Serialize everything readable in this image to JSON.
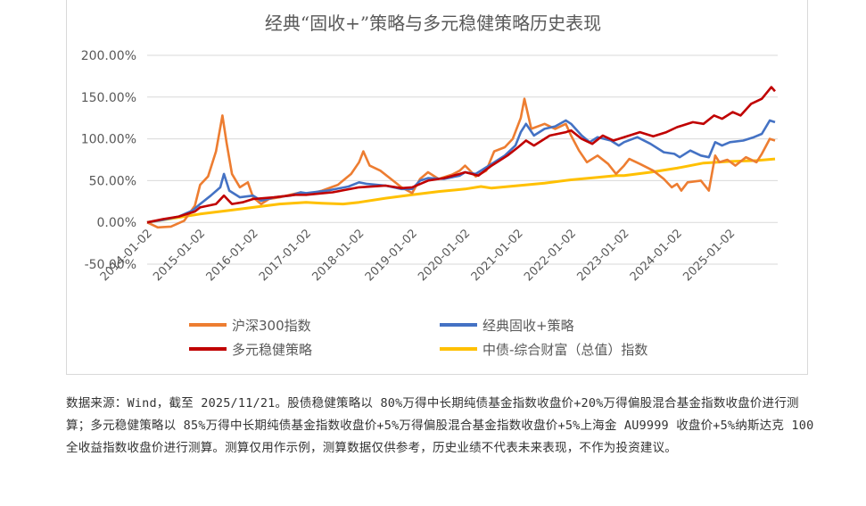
{
  "chart_data": {
    "type": "line",
    "title": "经典“固收+”策略与多元稳健策略历史表现",
    "y_ticks": [
      "200.00%",
      "150.00%",
      "100.00%",
      "50.00%",
      "0.00%",
      "-50.00%"
    ],
    "y_tick_values": [
      200,
      150,
      100,
      50,
      0,
      -50
    ],
    "ylim": [
      -50,
      200
    ],
    "x_ticks": [
      "2014-01-02",
      "2015-01-02",
      "2016-01-02",
      "2017-01-02",
      "2018-01-02",
      "2019-01-02",
      "2020-01-02",
      "2021-01-02",
      "2022-01-02",
      "2023-01-02",
      "2024-01-02",
      "2025-01-02"
    ],
    "x_tick_years": [
      2014,
      2015,
      2016,
      2017,
      2018,
      2019,
      2020,
      2021,
      2022,
      2023,
      2024,
      2025
    ],
    "xlim": [
      2014.0,
      2025.9
    ],
    "legend_position": "bottom",
    "series": [
      {
        "name": "沪深300指数",
        "color": "#ED7D31",
        "points": [
          [
            2014.0,
            0
          ],
          [
            2014.2,
            -6
          ],
          [
            2014.45,
            -5
          ],
          [
            2014.7,
            2
          ],
          [
            2014.9,
            20
          ],
          [
            2015.0,
            45
          ],
          [
            2015.15,
            55
          ],
          [
            2015.3,
            85
          ],
          [
            2015.42,
            128
          ],
          [
            2015.5,
            95
          ],
          [
            2015.6,
            58
          ],
          [
            2015.75,
            42
          ],
          [
            2015.9,
            48
          ],
          [
            2016.0,
            30
          ],
          [
            2016.15,
            22
          ],
          [
            2016.3,
            28
          ],
          [
            2016.5,
            30
          ],
          [
            2016.7,
            33
          ],
          [
            2016.9,
            36
          ],
          [
            2017.0,
            33
          ],
          [
            2017.3,
            38
          ],
          [
            2017.6,
            45
          ],
          [
            2017.85,
            58
          ],
          [
            2018.0,
            72
          ],
          [
            2018.08,
            85
          ],
          [
            2018.2,
            68
          ],
          [
            2018.4,
            62
          ],
          [
            2018.6,
            52
          ],
          [
            2018.8,
            42
          ],
          [
            2019.0,
            35
          ],
          [
            2019.15,
            52
          ],
          [
            2019.3,
            60
          ],
          [
            2019.5,
            52
          ],
          [
            2019.75,
            57
          ],
          [
            2019.9,
            62
          ],
          [
            2020.0,
            68
          ],
          [
            2020.2,
            55
          ],
          [
            2020.4,
            62
          ],
          [
            2020.55,
            85
          ],
          [
            2020.75,
            90
          ],
          [
            2020.9,
            100
          ],
          [
            2021.05,
            125
          ],
          [
            2021.12,
            148
          ],
          [
            2021.25,
            112
          ],
          [
            2021.5,
            118
          ],
          [
            2021.7,
            112
          ],
          [
            2021.9,
            118
          ],
          [
            2022.0,
            104
          ],
          [
            2022.15,
            86
          ],
          [
            2022.3,
            72
          ],
          [
            2022.5,
            80
          ],
          [
            2022.7,
            70
          ],
          [
            2022.85,
            58
          ],
          [
            2023.0,
            68
          ],
          [
            2023.1,
            76
          ],
          [
            2023.3,
            70
          ],
          [
            2023.55,
            62
          ],
          [
            2023.75,
            52
          ],
          [
            2023.9,
            42
          ],
          [
            2024.0,
            46
          ],
          [
            2024.08,
            38
          ],
          [
            2024.2,
            48
          ],
          [
            2024.45,
            50
          ],
          [
            2024.6,
            38
          ],
          [
            2024.72,
            80
          ],
          [
            2024.8,
            72
          ],
          [
            2024.95,
            75
          ],
          [
            2025.1,
            68
          ],
          [
            2025.3,
            78
          ],
          [
            2025.5,
            72
          ],
          [
            2025.6,
            82
          ],
          [
            2025.75,
            100
          ],
          [
            2025.85,
            98
          ]
        ]
      },
      {
        "name": "经典固收+策略",
        "color": "#4472C4",
        "points": [
          [
            2014.0,
            0
          ],
          [
            2014.3,
            3
          ],
          [
            2014.6,
            7
          ],
          [
            2014.85,
            14
          ],
          [
            2015.0,
            22
          ],
          [
            2015.2,
            32
          ],
          [
            2015.38,
            42
          ],
          [
            2015.45,
            58
          ],
          [
            2015.55,
            38
          ],
          [
            2015.75,
            30
          ],
          [
            2016.0,
            32
          ],
          [
            2016.15,
            26
          ],
          [
            2016.4,
            30
          ],
          [
            2016.7,
            32
          ],
          [
            2016.9,
            36
          ],
          [
            2017.0,
            35
          ],
          [
            2017.4,
            38
          ],
          [
            2017.8,
            43
          ],
          [
            2018.0,
            48
          ],
          [
            2018.15,
            46
          ],
          [
            2018.5,
            44
          ],
          [
            2018.8,
            40
          ],
          [
            2019.0,
            40
          ],
          [
            2019.15,
            50
          ],
          [
            2019.3,
            53
          ],
          [
            2019.6,
            52
          ],
          [
            2019.9,
            56
          ],
          [
            2020.0,
            60
          ],
          [
            2020.2,
            58
          ],
          [
            2020.5,
            70
          ],
          [
            2020.75,
            80
          ],
          [
            2020.95,
            92
          ],
          [
            2021.05,
            108
          ],
          [
            2021.15,
            118
          ],
          [
            2021.3,
            104
          ],
          [
            2021.5,
            112
          ],
          [
            2021.7,
            115
          ],
          [
            2021.9,
            122
          ],
          [
            2022.0,
            118
          ],
          [
            2022.2,
            104
          ],
          [
            2022.35,
            96
          ],
          [
            2022.5,
            102
          ],
          [
            2022.75,
            98
          ],
          [
            2022.9,
            92
          ],
          [
            2023.0,
            96
          ],
          [
            2023.25,
            102
          ],
          [
            2023.5,
            94
          ],
          [
            2023.75,
            84
          ],
          [
            2023.95,
            82
          ],
          [
            2024.05,
            78
          ],
          [
            2024.25,
            86
          ],
          [
            2024.45,
            80
          ],
          [
            2024.6,
            78
          ],
          [
            2024.72,
            96
          ],
          [
            2024.85,
            92
          ],
          [
            2025.0,
            96
          ],
          [
            2025.25,
            98
          ],
          [
            2025.45,
            102
          ],
          [
            2025.6,
            106
          ],
          [
            2025.75,
            122
          ],
          [
            2025.85,
            120
          ]
        ]
      },
      {
        "name": "多元稳健策略",
        "color": "#C00000",
        "points": [
          [
            2014.0,
            0
          ],
          [
            2014.3,
            4
          ],
          [
            2014.6,
            7
          ],
          [
            2014.9,
            13
          ],
          [
            2015.0,
            18
          ],
          [
            2015.3,
            22
          ],
          [
            2015.45,
            32
          ],
          [
            2015.6,
            22
          ],
          [
            2015.8,
            24
          ],
          [
            2016.0,
            28
          ],
          [
            2016.4,
            30
          ],
          [
            2016.8,
            33
          ],
          [
            2017.0,
            33
          ],
          [
            2017.5,
            36
          ],
          [
            2018.0,
            42
          ],
          [
            2018.5,
            44
          ],
          [
            2018.8,
            41
          ],
          [
            2019.0,
            42
          ],
          [
            2019.3,
            50
          ],
          [
            2019.6,
            53
          ],
          [
            2019.9,
            58
          ],
          [
            2020.0,
            60
          ],
          [
            2020.25,
            56
          ],
          [
            2020.5,
            68
          ],
          [
            2020.8,
            80
          ],
          [
            2021.0,
            90
          ],
          [
            2021.15,
            98
          ],
          [
            2021.3,
            92
          ],
          [
            2021.6,
            104
          ],
          [
            2021.9,
            108
          ],
          [
            2022.0,
            110
          ],
          [
            2022.2,
            100
          ],
          [
            2022.4,
            94
          ],
          [
            2022.6,
            104
          ],
          [
            2022.8,
            98
          ],
          [
            2023.0,
            102
          ],
          [
            2023.3,
            108
          ],
          [
            2023.55,
            103
          ],
          [
            2023.8,
            108
          ],
          [
            2024.0,
            114
          ],
          [
            2024.3,
            120
          ],
          [
            2024.5,
            118
          ],
          [
            2024.7,
            128
          ],
          [
            2024.85,
            124
          ],
          [
            2025.05,
            132
          ],
          [
            2025.2,
            128
          ],
          [
            2025.4,
            142
          ],
          [
            2025.6,
            148
          ],
          [
            2025.78,
            162
          ],
          [
            2025.85,
            157
          ]
        ]
      },
      {
        "name": "中债-综合财富（总值）指数",
        "color": "#FFC000",
        "points": [
          [
            2014.0,
            0
          ],
          [
            2014.5,
            5
          ],
          [
            2015.0,
            10
          ],
          [
            2015.5,
            14
          ],
          [
            2016.0,
            18
          ],
          [
            2016.5,
            22
          ],
          [
            2017.0,
            24
          ],
          [
            2017.3,
            23
          ],
          [
            2017.7,
            22
          ],
          [
            2018.0,
            24
          ],
          [
            2018.5,
            29
          ],
          [
            2019.0,
            33
          ],
          [
            2019.5,
            37
          ],
          [
            2020.0,
            40
          ],
          [
            2020.3,
            43
          ],
          [
            2020.5,
            41
          ],
          [
            2021.0,
            44
          ],
          [
            2021.5,
            47
          ],
          [
            2022.0,
            51
          ],
          [
            2022.5,
            54
          ],
          [
            2022.85,
            56
          ],
          [
            2023.0,
            56
          ],
          [
            2023.5,
            60
          ],
          [
            2024.0,
            65
          ],
          [
            2024.5,
            71
          ],
          [
            2025.0,
            73
          ],
          [
            2025.5,
            74
          ],
          [
            2025.85,
            76
          ]
        ]
      }
    ]
  },
  "note": "数据来源：Wind，截至 2025/11/21。股债稳健策略以 80%万得中长期纯债基金指数收盘价+20%万得偏股混合基金指数收盘价进行测算；多元稳健策略以 85%万得中长期纯债基金指数收盘价+5%万得偏股混合基金指数收盘价+5%上海金 AU9999 收盘价+5%纳斯达克 100 全收益指数收盘价进行测算。测算仅用作示例，测算数据仅供参考，历史业绩不代表未来表现，不作为投资建议。"
}
